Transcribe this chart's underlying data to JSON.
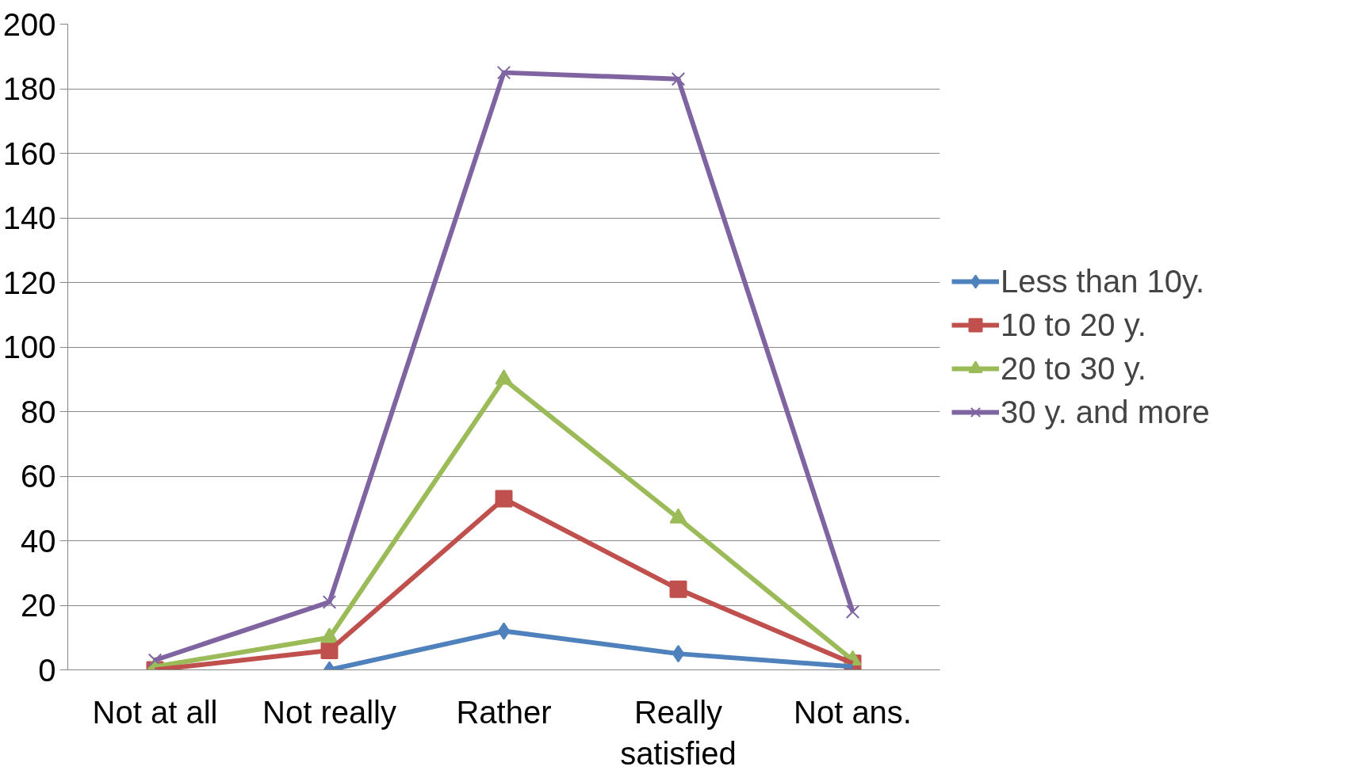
{
  "chart_data": {
    "type": "line",
    "categories": [
      "Not at all",
      "Not really",
      "Rather",
      "Really satisfied",
      "Not ans."
    ],
    "series": [
      {
        "name": "Less than 10y.",
        "color": "#4f81bd",
        "marker": "diamond",
        "values": [
          null,
          0,
          12,
          5,
          1
        ]
      },
      {
        "name": "10 to 20 y.",
        "color": "#c0504d",
        "marker": "square",
        "values": [
          0,
          6,
          53,
          25,
          2
        ]
      },
      {
        "name": "20 to 30 y.",
        "color": "#9bbb59",
        "marker": "triangle",
        "values": [
          1,
          10,
          90,
          47,
          3
        ]
      },
      {
        "name": "30 y. and more",
        "color": "#8064a2",
        "marker": "cross",
        "values": [
          3,
          21,
          185,
          183,
          18
        ]
      }
    ],
    "ylim": [
      0,
      200
    ],
    "yticks": [
      0,
      20,
      40,
      60,
      80,
      100,
      120,
      140,
      160,
      180,
      200
    ],
    "grid": "y",
    "legend": "right",
    "line_style": "solid"
  }
}
